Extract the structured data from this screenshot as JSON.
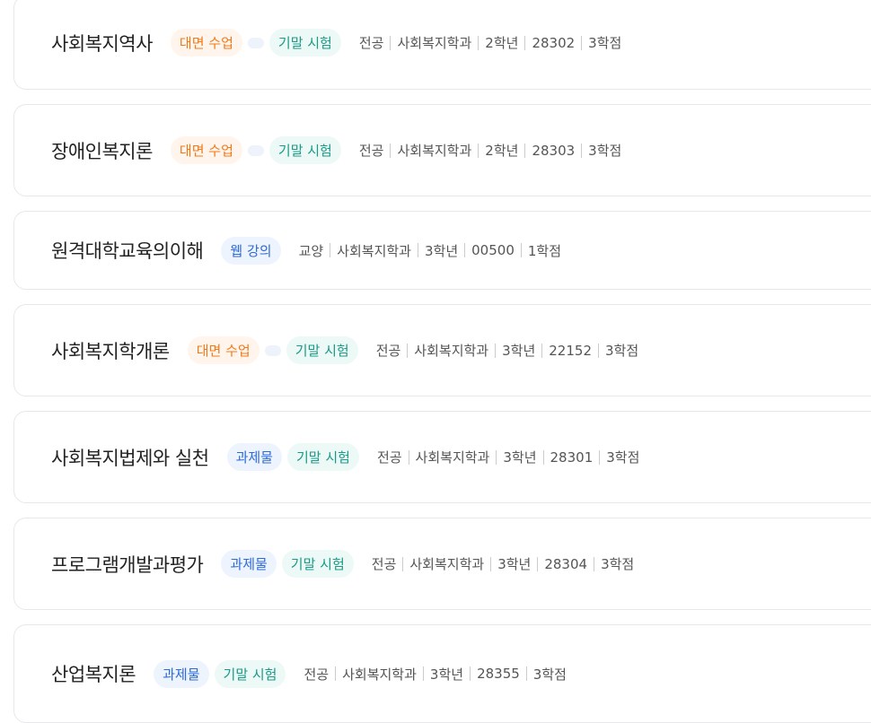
{
  "courses": [
    {
      "title": "사회복지역사",
      "badges": [
        {
          "type": "offline",
          "label": "대면 수업"
        },
        {
          "type": "dot"
        },
        {
          "type": "exam",
          "label": "기말 시험"
        }
      ],
      "meta": [
        "전공",
        "사회복지학과",
        "2학년",
        "28302",
        "3학점"
      ]
    },
    {
      "title": "장애인복지론",
      "badges": [
        {
          "type": "offline",
          "label": "대면 수업"
        },
        {
          "type": "dot"
        },
        {
          "type": "exam",
          "label": "기말 시험"
        }
      ],
      "meta": [
        "전공",
        "사회복지학과",
        "2학년",
        "28303",
        "3학점"
      ]
    },
    {
      "title": "원격대학교육의이해",
      "badges": [
        {
          "type": "web",
          "label": "웹 강의"
        }
      ],
      "meta": [
        "교양",
        "사회복지학과",
        "3학년",
        "00500",
        "1학점"
      ]
    },
    {
      "title": "사회복지학개론",
      "badges": [
        {
          "type": "offline",
          "label": "대면 수업"
        },
        {
          "type": "dot"
        },
        {
          "type": "exam",
          "label": "기말 시험"
        }
      ],
      "meta": [
        "전공",
        "사회복지학과",
        "3학년",
        "22152",
        "3학점"
      ]
    },
    {
      "title": "사회복지법제와 실천",
      "badges": [
        {
          "type": "task",
          "label": "과제물"
        },
        {
          "type": "exam",
          "label": "기말 시험"
        }
      ],
      "meta": [
        "전공",
        "사회복지학과",
        "3학년",
        "28301",
        "3학점"
      ]
    },
    {
      "title": "프로그램개발과평가",
      "badges": [
        {
          "type": "task",
          "label": "과제물"
        },
        {
          "type": "exam",
          "label": "기말 시험"
        }
      ],
      "meta": [
        "전공",
        "사회복지학과",
        "3학년",
        "28304",
        "3학점"
      ]
    },
    {
      "title": "산업복지론",
      "badges": [
        {
          "type": "task",
          "label": "과제물"
        },
        {
          "type": "exam",
          "label": "기말 시험"
        }
      ],
      "meta": [
        "전공",
        "사회복지학과",
        "3학년",
        "28355",
        "3학점"
      ]
    }
  ]
}
